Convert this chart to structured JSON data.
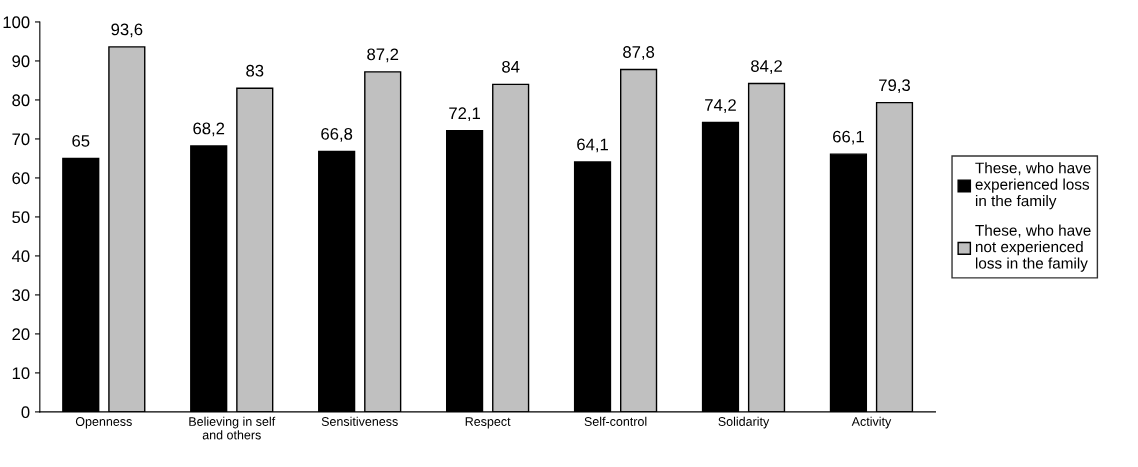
{
  "chart_data": {
    "type": "bar",
    "categories": [
      "Openness",
      "Believing in self and others",
      "Sensitiveness",
      "Respect",
      "Self-control",
      "Solidarity",
      "Activity"
    ],
    "series": [
      {
        "name": "These, who have experienced loss in the family",
        "color": "#000000",
        "values": [
          65,
          68.2,
          66.8,
          72.1,
          64.1,
          74.2,
          66.1
        ],
        "value_labels": [
          "65",
          "68,2",
          "66,8",
          "72,1",
          "64,1",
          "74,2",
          "66,1"
        ]
      },
      {
        "name": "These, who have not experienced loss in the family",
        "color": "#c0c0c0",
        "values": [
          93.6,
          83,
          87.2,
          84,
          87.8,
          84.2,
          79.3
        ],
        "value_labels": [
          "93,6",
          "83",
          "87,2",
          "84",
          "87,8",
          "84,2",
          "79,3"
        ]
      }
    ],
    "ylim": [
      0,
      100
    ],
    "yticks": [
      0,
      10,
      20,
      30,
      40,
      50,
      60,
      70,
      80,
      90,
      100
    ],
    "grid": false,
    "legend": "right"
  }
}
